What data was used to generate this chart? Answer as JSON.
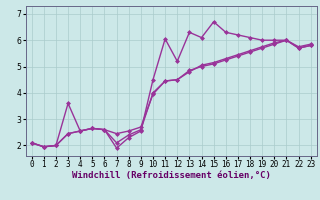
{
  "title": "",
  "xlabel": "Windchill (Refroidissement éolien,°C)",
  "ylabel": "",
  "bg_color": "#cce8e8",
  "grid_color": "#aacccc",
  "line_color": "#993399",
  "marker": "D",
  "markersize": 2,
  "linewidth": 1.0,
  "x_ticks": [
    0,
    1,
    2,
    3,
    4,
    5,
    6,
    7,
    8,
    9,
    10,
    11,
    12,
    13,
    14,
    15,
    16,
    17,
    18,
    19,
    20,
    21,
    22,
    23
  ],
  "y_ticks": [
    2,
    3,
    4,
    5,
    6,
    7
  ],
  "ylim": [
    1.6,
    7.3
  ],
  "xlim": [
    -0.5,
    23.5
  ],
  "line1_x": [
    0,
    1,
    2,
    3,
    4,
    5,
    6,
    7,
    8,
    9,
    10,
    11,
    12,
    13,
    14,
    15,
    16,
    17,
    18,
    19,
    20,
    21,
    22,
    23
  ],
  "line1_y": [
    2.1,
    1.95,
    2.0,
    3.6,
    2.55,
    2.65,
    2.6,
    1.9,
    2.3,
    2.55,
    4.5,
    6.05,
    5.2,
    6.3,
    6.1,
    6.7,
    6.3,
    6.2,
    6.1,
    6.0,
    6.0,
    6.0,
    5.7,
    5.8
  ],
  "line2_x": [
    0,
    1,
    2,
    3,
    4,
    5,
    6,
    7,
    8,
    9,
    10,
    11,
    12,
    13,
    14,
    15,
    16,
    17,
    18,
    19,
    20,
    21,
    22,
    23
  ],
  "line2_y": [
    2.1,
    1.95,
    2.0,
    2.45,
    2.55,
    2.65,
    2.6,
    2.1,
    2.4,
    2.6,
    4.0,
    4.45,
    4.5,
    4.85,
    5.0,
    5.1,
    5.25,
    5.4,
    5.55,
    5.7,
    5.85,
    6.0,
    5.7,
    5.8
  ],
  "line3_x": [
    0,
    1,
    2,
    3,
    4,
    5,
    6,
    7,
    8,
    9,
    10,
    11,
    12,
    13,
    14,
    15,
    16,
    17,
    18,
    19,
    20,
    21,
    22,
    23
  ],
  "line3_y": [
    2.1,
    1.95,
    2.0,
    2.45,
    2.55,
    2.65,
    2.6,
    2.45,
    2.55,
    2.7,
    3.95,
    4.45,
    4.5,
    4.8,
    5.05,
    5.15,
    5.3,
    5.45,
    5.6,
    5.75,
    5.9,
    6.0,
    5.75,
    5.85
  ],
  "tick_fontsize": 5.5,
  "xlabel_fontsize": 6.5,
  "spine_color": "#666688"
}
